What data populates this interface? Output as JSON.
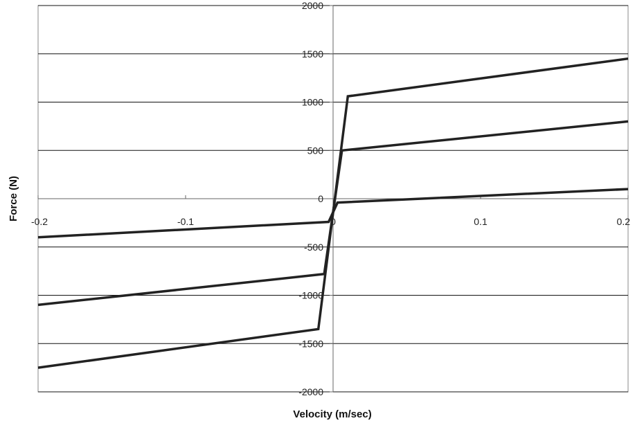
{
  "chart_data": {
    "type": "line",
    "title": "",
    "xlabel": "Velocity (m/sec)",
    "ylabel": "Force (N)",
    "xlim": [
      -0.2,
      0.2
    ],
    "ylim": [
      -2000,
      2000
    ],
    "x_ticks": [
      -0.2,
      -0.1,
      0,
      0.1,
      0.2
    ],
    "x_tick_labels": [
      "-0.2",
      "-0.1",
      "0",
      "0.1",
      "0.2"
    ],
    "y_ticks": [
      -2000,
      -1500,
      -1000,
      -500,
      0,
      500,
      1000,
      1500,
      2000
    ],
    "y_tick_labels": [
      "-2000",
      "-1500",
      "-1000",
      "-500",
      "0",
      "500",
      "1000",
      "1500",
      "2000"
    ],
    "grid": "horizontal",
    "legend": "none",
    "series": [
      {
        "x": [
          -0.2,
          -0.003,
          0.003,
          0.2
        ],
        "y": [
          -400,
          -240,
          -40,
          100
        ]
      },
      {
        "x": [
          -0.2,
          -0.006,
          0.006,
          0.2
        ],
        "y": [
          -1100,
          -780,
          500,
          800
        ]
      },
      {
        "x": [
          -0.2,
          -0.01,
          0.01,
          0.2
        ],
        "y": [
          -1750,
          -1350,
          1060,
          1450
        ]
      }
    ],
    "colors": {
      "series_line": "#222222",
      "grid": "#111111",
      "frame": "#888888"
    }
  }
}
